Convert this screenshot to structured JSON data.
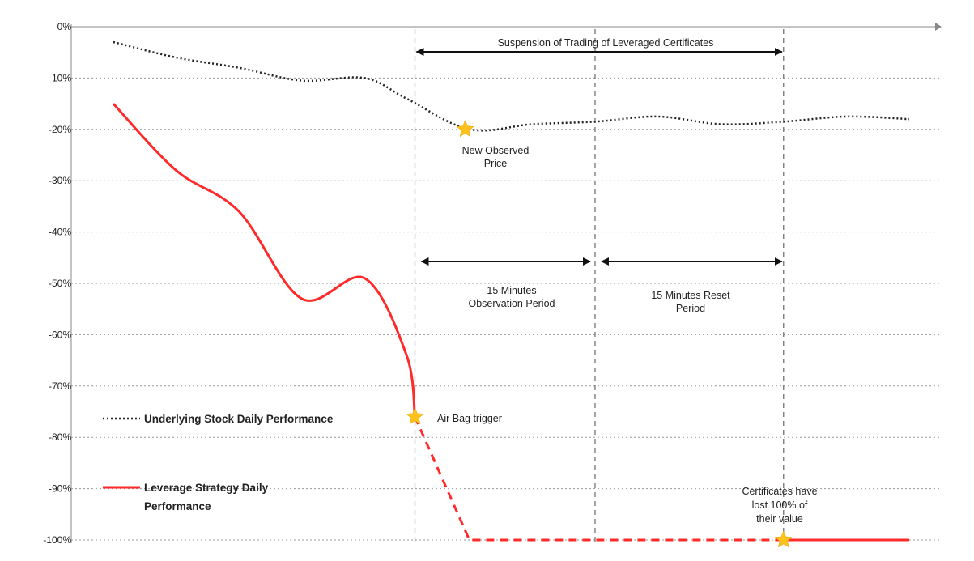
{
  "chart_data": {
    "type": "line",
    "title": "",
    "xlabel": "",
    "ylabel": "",
    "ylim": [
      -100,
      0
    ],
    "y_tick_labels": [
      "0%",
      "-10%",
      "-20%",
      "-30%",
      "-40%",
      "-50%",
      "-60%",
      "-70%",
      "-80%",
      "-90%",
      "-100%"
    ],
    "grid": "horizontal dotted",
    "legend_position": "left",
    "colors": {
      "stock": "#222222",
      "leverage": "#ff2a2a",
      "star": "#ffc21a",
      "grid": "#9a9a9a"
    },
    "series": [
      {
        "name": "Underlying Stock Daily Performance",
        "style": "dotted",
        "points": [
          [
            0,
            -3
          ],
          [
            1.5,
            -6
          ],
          [
            3,
            -8
          ],
          [
            4.5,
            -10.5
          ],
          [
            6,
            -10
          ],
          [
            7,
            -14
          ],
          [
            8.5,
            -20
          ],
          [
            10,
            -19
          ],
          [
            11.5,
            -18.5
          ],
          [
            13,
            -17.5
          ],
          [
            14.5,
            -19
          ],
          [
            16,
            -18.5
          ],
          [
            17.5,
            -17.5
          ],
          [
            19,
            -18
          ]
        ]
      },
      {
        "name": "Leverage Strategy Daily Performance",
        "style": "solid",
        "points": [
          [
            0,
            -15
          ],
          [
            1.5,
            -28
          ],
          [
            3,
            -36
          ],
          [
            4.5,
            -53
          ],
          [
            6,
            -49
          ],
          [
            7,
            -64
          ],
          [
            7.2,
            -76
          ]
        ],
        "continuation": {
          "style": "dashed",
          "points": [
            [
              7.2,
              -76
            ],
            [
              8.5,
              -100
            ],
            [
              16,
              -100
            ]
          ]
        },
        "tail": {
          "style": "solid",
          "points": [
            [
              16,
              -100
            ],
            [
              19,
              -100
            ]
          ]
        }
      }
    ],
    "markers": [
      {
        "x": 8.4,
        "y": -20,
        "label": "New Observed Price"
      },
      {
        "x": 7.2,
        "y": -76,
        "label": "Air Bag trigger"
      },
      {
        "x": 16,
        "y": -100,
        "label": "Certificates have lost 100% of their value"
      }
    ],
    "annotations": {
      "suspension": "Suspension of Trading of Leveraged Certificates",
      "new_price_1": "New Observed",
      "new_price_2": "Price",
      "observation_1": "15 Minutes",
      "observation_2": "Observation Period",
      "reset_1": "15  Minutes Reset",
      "reset_2": "Period",
      "airbag": "Air Bag trigger",
      "lost_1": "Certificates have",
      "lost_2": "lost 100% of",
      "lost_3": "their value"
    },
    "legend": {
      "stock": "Underlying Stock Daily Performance",
      "leverage_1": "Leverage Strategy Daily",
      "leverage_2": "Performance"
    }
  }
}
